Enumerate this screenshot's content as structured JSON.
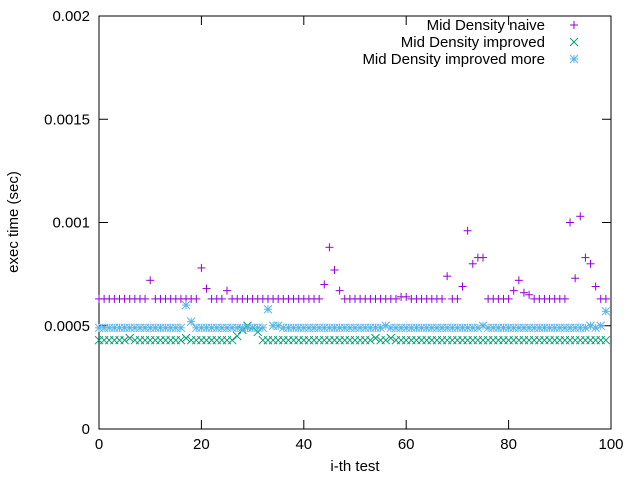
{
  "chart_data": {
    "type": "scatter",
    "title": "",
    "xlabel": "i-th test",
    "ylabel": "exec time (sec)",
    "xlim": [
      0,
      100
    ],
    "ylim": [
      0,
      0.002
    ],
    "xticks": [
      0,
      20,
      40,
      60,
      80,
      100
    ],
    "yticks": [
      0,
      0.0005,
      0.001,
      0.0015,
      0.002
    ],
    "xtick_labels": [
      "0",
      "20",
      "40",
      "60",
      "80",
      "100"
    ],
    "ytick_labels": [
      "0",
      "0.0005",
      "0.001",
      "0.0015",
      "0.002"
    ],
    "grid": false,
    "legend_position": "top-right",
    "series": [
      {
        "name": "Mid Density naive",
        "marker": "plus",
        "color": "#9400d3",
        "x": [
          0,
          1,
          2,
          3,
          4,
          5,
          6,
          7,
          8,
          9,
          10,
          11,
          12,
          13,
          14,
          15,
          16,
          17,
          18,
          19,
          20,
          21,
          22,
          23,
          24,
          25,
          26,
          27,
          28,
          29,
          30,
          31,
          32,
          33,
          34,
          35,
          36,
          37,
          38,
          39,
          40,
          41,
          42,
          43,
          44,
          45,
          46,
          47,
          48,
          49,
          50,
          51,
          52,
          53,
          54,
          55,
          56,
          57,
          58,
          59,
          60,
          61,
          62,
          63,
          64,
          65,
          66,
          67,
          68,
          69,
          70,
          71,
          72,
          73,
          74,
          75,
          76,
          77,
          78,
          79,
          80,
          81,
          82,
          83,
          84,
          85,
          86,
          87,
          88,
          89,
          90,
          91,
          92,
          93,
          94,
          95,
          96,
          97,
          98,
          99
        ],
        "y": [
          0.00063,
          0.00063,
          0.00063,
          0.00063,
          0.00063,
          0.00063,
          0.00063,
          0.00063,
          0.00063,
          0.00063,
          0.00072,
          0.00063,
          0.00063,
          0.00063,
          0.00063,
          0.00063,
          0.00063,
          0.00063,
          0.00063,
          0.00063,
          0.00078,
          0.00068,
          0.00063,
          0.00063,
          0.00063,
          0.00067,
          0.00063,
          0.00063,
          0.00063,
          0.00063,
          0.00063,
          0.00063,
          0.00063,
          0.00063,
          0.00063,
          0.00063,
          0.00063,
          0.00063,
          0.00063,
          0.00063,
          0.00063,
          0.00063,
          0.00063,
          0.00063,
          0.0007,
          0.00088,
          0.00077,
          0.00067,
          0.00063,
          0.00063,
          0.00063,
          0.00063,
          0.00063,
          0.00063,
          0.00063,
          0.00063,
          0.00063,
          0.00063,
          0.00063,
          0.00064,
          0.00064,
          0.00063,
          0.00063,
          0.00063,
          0.00063,
          0.00063,
          0.00063,
          0.00063,
          0.00074,
          0.00063,
          0.00063,
          0.00069,
          0.00096,
          0.0008,
          0.00083,
          0.00083,
          0.00063,
          0.00063,
          0.00063,
          0.00063,
          0.00063,
          0.00067,
          0.00072,
          0.00066,
          0.00065,
          0.00063,
          0.00063,
          0.00063,
          0.00063,
          0.00063,
          0.00063,
          0.00063,
          0.001,
          0.00073,
          0.00103,
          0.00083,
          0.0008,
          0.00069,
          0.00063,
          0.00063
        ]
      },
      {
        "name": "Mid Density improved",
        "marker": "cross",
        "color": "#009e73",
        "x": [
          0,
          1,
          2,
          3,
          4,
          5,
          6,
          7,
          8,
          9,
          10,
          11,
          12,
          13,
          14,
          15,
          16,
          17,
          18,
          19,
          20,
          21,
          22,
          23,
          24,
          25,
          26,
          27,
          28,
          29,
          30,
          31,
          32,
          33,
          34,
          35,
          36,
          37,
          38,
          39,
          40,
          41,
          42,
          43,
          44,
          45,
          46,
          47,
          48,
          49,
          50,
          51,
          52,
          53,
          54,
          55,
          56,
          57,
          58,
          59,
          60,
          61,
          62,
          63,
          64,
          65,
          66,
          67,
          68,
          69,
          70,
          71,
          72,
          73,
          74,
          75,
          76,
          77,
          78,
          79,
          80,
          81,
          82,
          83,
          84,
          85,
          86,
          87,
          88,
          89,
          90,
          91,
          92,
          93,
          94,
          95,
          96,
          97,
          98,
          99
        ],
        "y": [
          0.00043,
          0.00043,
          0.00043,
          0.00043,
          0.00043,
          0.00043,
          0.00044,
          0.00043,
          0.00043,
          0.00043,
          0.00043,
          0.00043,
          0.00043,
          0.00043,
          0.00043,
          0.00043,
          0.00043,
          0.00044,
          0.00043,
          0.00043,
          0.00043,
          0.00043,
          0.00043,
          0.00043,
          0.00043,
          0.00043,
          0.00043,
          0.00045,
          0.00048,
          0.0005,
          0.00049,
          0.00047,
          0.00043,
          0.00043,
          0.00043,
          0.00043,
          0.00043,
          0.00043,
          0.00043,
          0.00043,
          0.00043,
          0.00043,
          0.00043,
          0.00043,
          0.00043,
          0.00043,
          0.00043,
          0.00043,
          0.00043,
          0.00043,
          0.00043,
          0.00043,
          0.00043,
          0.00043,
          0.00044,
          0.00043,
          0.00043,
          0.00044,
          0.00043,
          0.00043,
          0.00043,
          0.00043,
          0.00043,
          0.00043,
          0.00043,
          0.00043,
          0.00043,
          0.00043,
          0.00043,
          0.00043,
          0.00043,
          0.00043,
          0.00043,
          0.00043,
          0.00043,
          0.00043,
          0.00043,
          0.00043,
          0.00043,
          0.00043,
          0.00043,
          0.00043,
          0.00043,
          0.00043,
          0.00043,
          0.00043,
          0.00043,
          0.00043,
          0.00043,
          0.00043,
          0.00043,
          0.00043,
          0.00043,
          0.00043,
          0.00043,
          0.00043,
          0.00043,
          0.00043,
          0.00043,
          0.00043
        ]
      },
      {
        "name": "Mid Density improved more",
        "marker": "star",
        "color": "#56b4e9",
        "x": [
          0,
          1,
          2,
          3,
          4,
          5,
          6,
          7,
          8,
          9,
          10,
          11,
          12,
          13,
          14,
          15,
          16,
          17,
          18,
          19,
          20,
          21,
          22,
          23,
          24,
          25,
          26,
          27,
          28,
          29,
          30,
          31,
          32,
          33,
          34,
          35,
          36,
          37,
          38,
          39,
          40,
          41,
          42,
          43,
          44,
          45,
          46,
          47,
          48,
          49,
          50,
          51,
          52,
          53,
          54,
          55,
          56,
          57,
          58,
          59,
          60,
          61,
          62,
          63,
          64,
          65,
          66,
          67,
          68,
          69,
          70,
          71,
          72,
          73,
          74,
          75,
          76,
          77,
          78,
          79,
          80,
          81,
          82,
          83,
          84,
          85,
          86,
          87,
          88,
          89,
          90,
          91,
          92,
          93,
          94,
          95,
          96,
          97,
          98,
          99
        ],
        "y": [
          0.00049,
          0.00049,
          0.00049,
          0.00049,
          0.00049,
          0.00049,
          0.00049,
          0.00049,
          0.00049,
          0.00049,
          0.00049,
          0.00049,
          0.00049,
          0.00049,
          0.00049,
          0.00049,
          0.00049,
          0.0006,
          0.00052,
          0.00049,
          0.00049,
          0.00049,
          0.00049,
          0.00049,
          0.00049,
          0.00049,
          0.00049,
          0.00049,
          0.00049,
          0.00049,
          0.00049,
          0.00049,
          0.00049,
          0.00058,
          0.0005,
          0.0005,
          0.00049,
          0.00049,
          0.00049,
          0.00049,
          0.00049,
          0.00049,
          0.00049,
          0.00049,
          0.00049,
          0.00049,
          0.00049,
          0.00049,
          0.00049,
          0.00049,
          0.00049,
          0.00049,
          0.00049,
          0.00049,
          0.00049,
          0.00049,
          0.0005,
          0.00049,
          0.00049,
          0.00049,
          0.00049,
          0.00049,
          0.00049,
          0.00049,
          0.00049,
          0.00049,
          0.00049,
          0.00049,
          0.00049,
          0.00049,
          0.00049,
          0.00049,
          0.00049,
          0.00049,
          0.00049,
          0.0005,
          0.00049,
          0.00049,
          0.00049,
          0.00049,
          0.00049,
          0.00049,
          0.00049,
          0.00049,
          0.00049,
          0.00049,
          0.00049,
          0.00049,
          0.00049,
          0.00049,
          0.00049,
          0.00049,
          0.00049,
          0.00049,
          0.00049,
          0.00049,
          0.0005,
          0.00049,
          0.0005,
          0.00057
        ]
      }
    ]
  }
}
